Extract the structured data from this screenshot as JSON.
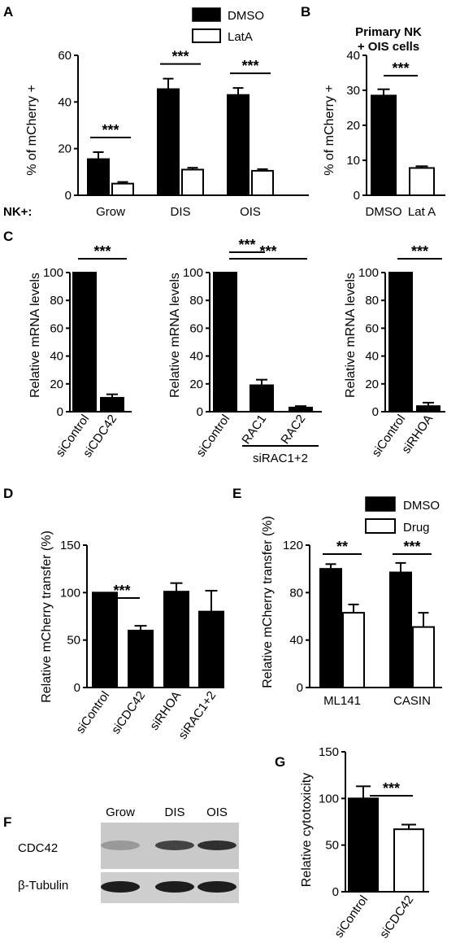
{
  "panels": {
    "A": {
      "label": "A",
      "row_label": "NK+:",
      "chart_data": {
        "type": "bar",
        "categories": [
          "Grow",
          "DIS",
          "OIS"
        ],
        "series": [
          {
            "name": "DMSO",
            "values": [
              15.5,
              45.5,
              43.0
            ],
            "errors": [
              3.0,
              4.5,
              3.0
            ],
            "fill": "#000000"
          },
          {
            "name": "LatA",
            "values": [
              5.0,
              11.0,
              10.5
            ],
            "errors": [
              0.7,
              0.8,
              0.7
            ],
            "fill": "#ffffff"
          }
        ],
        "ylabel": "% of mCherry +",
        "ylim": [
          0,
          60
        ],
        "yticks": [
          "0",
          "20",
          "40",
          "60"
        ],
        "significance": [
          "***",
          "***",
          "***"
        ],
        "legend": "top-right"
      }
    },
    "B": {
      "label": "B",
      "title_lines": [
        "Primary NK",
        "+ OIS cells"
      ],
      "chart_data": {
        "type": "bar",
        "categories": [
          "DMSO",
          "Lat A"
        ],
        "values": [
          28.5,
          7.8
        ],
        "errors": [
          1.8,
          0.5
        ],
        "fills": [
          "#000000",
          "#ffffff"
        ],
        "ylabel": "% of mCherry +",
        "ylim": [
          0,
          40
        ],
        "yticks": [
          "0",
          "10",
          "20",
          "30",
          "40"
        ],
        "significance": [
          "***"
        ]
      }
    },
    "C": {
      "label": "C",
      "charts": [
        {
          "chart_data": {
            "type": "bar",
            "categories": [
              "siControl",
              "siCDC42"
            ],
            "values": [
              100,
              10
            ],
            "errors": [
              0,
              2.5
            ],
            "ylabel": "Relative mRNA levels",
            "ylim": [
              0,
              100
            ],
            "yticks": [
              "0",
              "20",
              "40",
              "60",
              "80",
              "100"
            ],
            "significance": [
              "***"
            ]
          }
        },
        {
          "chart_data": {
            "type": "bar",
            "categories": [
              "siControl",
              "RAC1",
              "RAC2"
            ],
            "group_label": "siRAC1+2",
            "values": [
              100,
              19,
              3
            ],
            "errors": [
              0,
              4,
              1
            ],
            "ylabel": "Relative mRNA levels",
            "ylim": [
              0,
              100
            ],
            "yticks": [
              "0",
              "20",
              "40",
              "60",
              "80",
              "100"
            ],
            "significance": [
              "***",
              "***"
            ]
          }
        },
        {
          "chart_data": {
            "type": "bar",
            "categories": [
              "siControl",
              "siRHOA"
            ],
            "values": [
              100,
              4
            ],
            "errors": [
              0,
              2.5
            ],
            "ylabel": "Relative mRNA levels",
            "ylim": [
              0,
              100
            ],
            "yticks": [
              "0",
              "20",
              "40",
              "60",
              "80",
              "100"
            ],
            "significance": [
              "***"
            ]
          }
        }
      ]
    },
    "D": {
      "label": "D",
      "chart_data": {
        "type": "bar",
        "categories": [
          "siControl",
          "siCDC42",
          "siRHOA",
          "siRAC1+2"
        ],
        "values": [
          100,
          60,
          101,
          80
        ],
        "errors": [
          0,
          5,
          9,
          22
        ],
        "ylabel": "Relative mCherry transfer (%)",
        "ylim": [
          0,
          150
        ],
        "yticks": [
          "0",
          "50",
          "100",
          "150"
        ],
        "significance": [
          "***"
        ]
      }
    },
    "E": {
      "label": "E",
      "chart_data": {
        "type": "bar",
        "categories": [
          "ML141",
          "CASIN"
        ],
        "series": [
          {
            "name": "DMSO",
            "values": [
              100,
              97
            ],
            "errors": [
              4,
              8
            ],
            "fill": "#000000"
          },
          {
            "name": "Drug",
            "values": [
              63,
              51
            ],
            "errors": [
              7,
              12
            ],
            "fill": "#ffffff"
          }
        ],
        "ylabel": "Relative mCherry transfer (%)",
        "ylim": [
          0,
          120
        ],
        "yticks": [
          "0",
          "40",
          "80",
          "120"
        ],
        "significance": [
          "**",
          "***"
        ],
        "legend": "top-right"
      }
    },
    "F": {
      "label": "F",
      "lanes": [
        "Grow",
        "DIS",
        "OIS"
      ],
      "rows": [
        "CDC42",
        "β-Tubulin"
      ],
      "band_intensity": {
        "CDC42": [
          0.25,
          0.7,
          0.8
        ],
        "β-Tubulin": [
          0.9,
          0.9,
          0.9
        ]
      }
    },
    "G": {
      "label": "G",
      "chart_data": {
        "type": "bar",
        "categories": [
          "siControl",
          "siCDC42"
        ],
        "values": [
          100,
          67
        ],
        "errors": [
          13,
          5
        ],
        "fills": [
          "#000000",
          "#ffffff"
        ],
        "ylabel": "Relative cytotoxicity",
        "ylim": [
          0,
          150
        ],
        "yticks": [
          "0",
          "50",
          "100",
          "150"
        ],
        "significance": [
          "***"
        ]
      }
    }
  }
}
